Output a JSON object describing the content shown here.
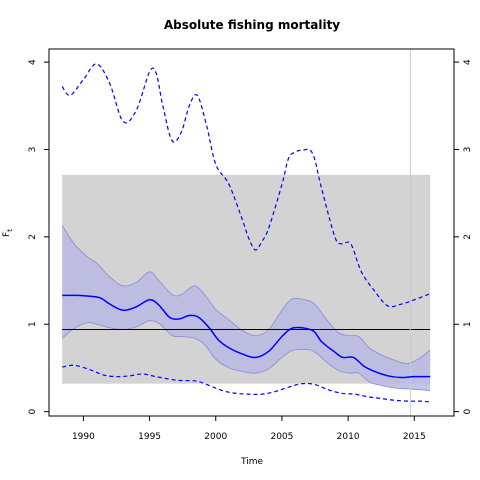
{
  "chart_data": {
    "type": "line",
    "title": "Absolute fishing mortality",
    "xlabel": "Time",
    "ylabel": "F",
    "ylabel_sub": "t",
    "xlim": [
      1987.4,
      2018.0
    ],
    "ylim": [
      -0.05,
      4.15
    ],
    "y2lim": [
      -0.05,
      4.15
    ],
    "x_ticks": [
      1990,
      1995,
      2000,
      2005,
      2010,
      2015
    ],
    "y_ticks": [
      0,
      1,
      2,
      3,
      4
    ],
    "y2_ticks": [
      0,
      1,
      2,
      3,
      4
    ],
    "gray_region": {
      "x": [
        1988.4,
        2016.2
      ],
      "y": [
        0.32,
        2.71
      ]
    },
    "reference_line": 0.94,
    "vertical_line_x": 2014.7,
    "colors": {
      "series": "#0000ff",
      "ci_band": "#b9b9e3",
      "gray_region": "#d3d3d3",
      "reference_line": "#000000",
      "vertical_line": "#cccccc"
    },
    "estimate": {
      "x": [
        1988.4,
        1989.5,
        1990.5,
        1991.3,
        1992,
        1993,
        1994,
        1995,
        1995.7,
        1996.5,
        1997.2,
        1998,
        1998.7,
        1999.5,
        2000.2,
        2001,
        2002,
        2003,
        2004,
        2005,
        2005.7,
        2006.5,
        2007.4,
        2008,
        2009,
        2009.6,
        2010.4,
        2011.2,
        2012,
        2013,
        2014,
        2015,
        2016.2
      ],
      "values": [
        1.33,
        1.33,
        1.32,
        1.3,
        1.23,
        1.16,
        1.2,
        1.28,
        1.22,
        1.08,
        1.06,
        1.1,
        1.08,
        0.96,
        0.82,
        0.73,
        0.66,
        0.62,
        0.69,
        0.86,
        0.95,
        0.96,
        0.92,
        0.8,
        0.68,
        0.62,
        0.62,
        0.52,
        0.46,
        0.41,
        0.39,
        0.4,
        0.4
      ]
    },
    "ci_upper": {
      "x": [
        1988.4,
        1989.3,
        1990.3,
        1991,
        1992,
        1993,
        1994,
        1995,
        1995.7,
        1996.7,
        1997.4,
        1998.4,
        1999.2,
        2000,
        2001,
        2002,
        2003,
        2004,
        2005,
        2005.8,
        2007,
        2007.6,
        2008.5,
        2009.3,
        2010.1,
        2010.8,
        2011.6,
        2012.5,
        2013.5,
        2014.5,
        2015.5,
        2016.2
      ],
      "values": [
        2.13,
        1.92,
        1.77,
        1.7,
        1.54,
        1.44,
        1.48,
        1.6,
        1.5,
        1.34,
        1.34,
        1.44,
        1.33,
        1.17,
        1.05,
        0.93,
        0.87,
        0.94,
        1.16,
        1.29,
        1.27,
        1.21,
        1.03,
        0.9,
        0.87,
        0.86,
        0.73,
        0.65,
        0.59,
        0.55,
        0.62,
        0.71
      ]
    },
    "ci_lower": {
      "x": [
        1988.4,
        1989.3,
        1990.3,
        1991,
        1992,
        1993,
        1994,
        1995,
        1995.8,
        1996.7,
        1997.4,
        1998.4,
        1999.2,
        2000,
        2001,
        2002,
        2003,
        2004,
        2005,
        2005.8,
        2007,
        2007.6,
        2008.5,
        2009.3,
        2010.1,
        2010.8,
        2011.6,
        2012.5,
        2013.5,
        2014.5,
        2015.5,
        2016.2
      ],
      "values": [
        0.84,
        0.95,
        1.02,
        1.0,
        0.96,
        0.94,
        0.97,
        1.04,
        1.0,
        0.87,
        0.86,
        0.84,
        0.76,
        0.6,
        0.5,
        0.46,
        0.44,
        0.49,
        0.62,
        0.7,
        0.71,
        0.67,
        0.55,
        0.47,
        0.44,
        0.44,
        0.34,
        0.3,
        0.27,
        0.26,
        0.25,
        0.24
      ]
    },
    "upper_dashed": {
      "x": [
        1988.4,
        1989,
        1990,
        1991,
        1992,
        1993,
        1994,
        1995,
        1995.5,
        1996,
        1996.7,
        1997.4,
        1998,
        1998.6,
        1999.3,
        2000,
        2001,
        2002,
        2002.5,
        2003,
        2003.5,
        2004,
        2005,
        2005.5,
        2006,
        2006.5,
        2007.3,
        2008,
        2009,
        2009.5,
        2010.2,
        2011,
        2012,
        2013,
        2014,
        2015,
        2016.2
      ],
      "values": [
        3.72,
        3.62,
        3.8,
        3.98,
        3.75,
        3.32,
        3.45,
        3.89,
        3.87,
        3.5,
        3.1,
        3.2,
        3.5,
        3.62,
        3.28,
        2.83,
        2.6,
        2.2,
        1.98,
        1.85,
        1.95,
        2.1,
        2.6,
        2.9,
        2.97,
        2.99,
        2.96,
        2.55,
        2.0,
        1.92,
        1.92,
        1.6,
        1.38,
        1.21,
        1.23,
        1.28,
        1.35
      ]
    },
    "lower_dashed": {
      "x": [
        1988.4,
        1989.3,
        1990.5,
        1991.5,
        1992.5,
        1993.5,
        1994.5,
        1995.5,
        1997,
        1998.5,
        1999.5,
        2000.5,
        2001.5,
        2002.5,
        2003.5,
        2004.5,
        2005.5,
        2006.5,
        2007.5,
        2008.5,
        2009.5,
        2010.5,
        2011.5,
        2012.5,
        2013.5,
        2014.5,
        2015.5,
        2016.2
      ],
      "values": [
        0.51,
        0.53,
        0.48,
        0.42,
        0.4,
        0.41,
        0.43,
        0.4,
        0.36,
        0.35,
        0.3,
        0.24,
        0.21,
        0.2,
        0.2,
        0.23,
        0.28,
        0.32,
        0.31,
        0.25,
        0.21,
        0.2,
        0.17,
        0.15,
        0.13,
        0.12,
        0.12,
        0.11
      ]
    }
  }
}
